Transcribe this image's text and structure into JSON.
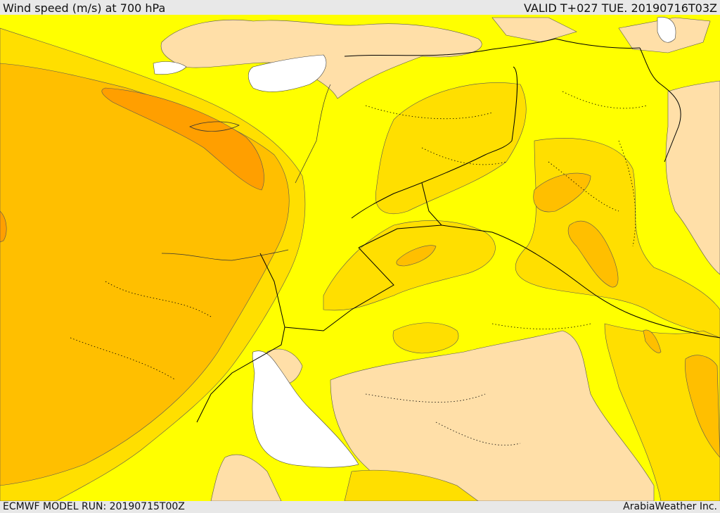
{
  "header": {
    "title": "Wind speed (m/s) at 700 hPa",
    "valid": "VALID T+027 TUE. 20190716T03Z"
  },
  "footer": {
    "model_run": "ECMWF MODEL RUN: 20190715T00Z",
    "credit": "ArabiaWeather Inc."
  },
  "colors": {
    "sea": "#ffffff",
    "calm": "#ffdfa8",
    "low": "#ffff00",
    "moderate": "#ffdf00",
    "fresh": "#ffbf00",
    "strong": "#ff9f00",
    "frame": "#e8e8e8",
    "border": "#000000"
  }
}
